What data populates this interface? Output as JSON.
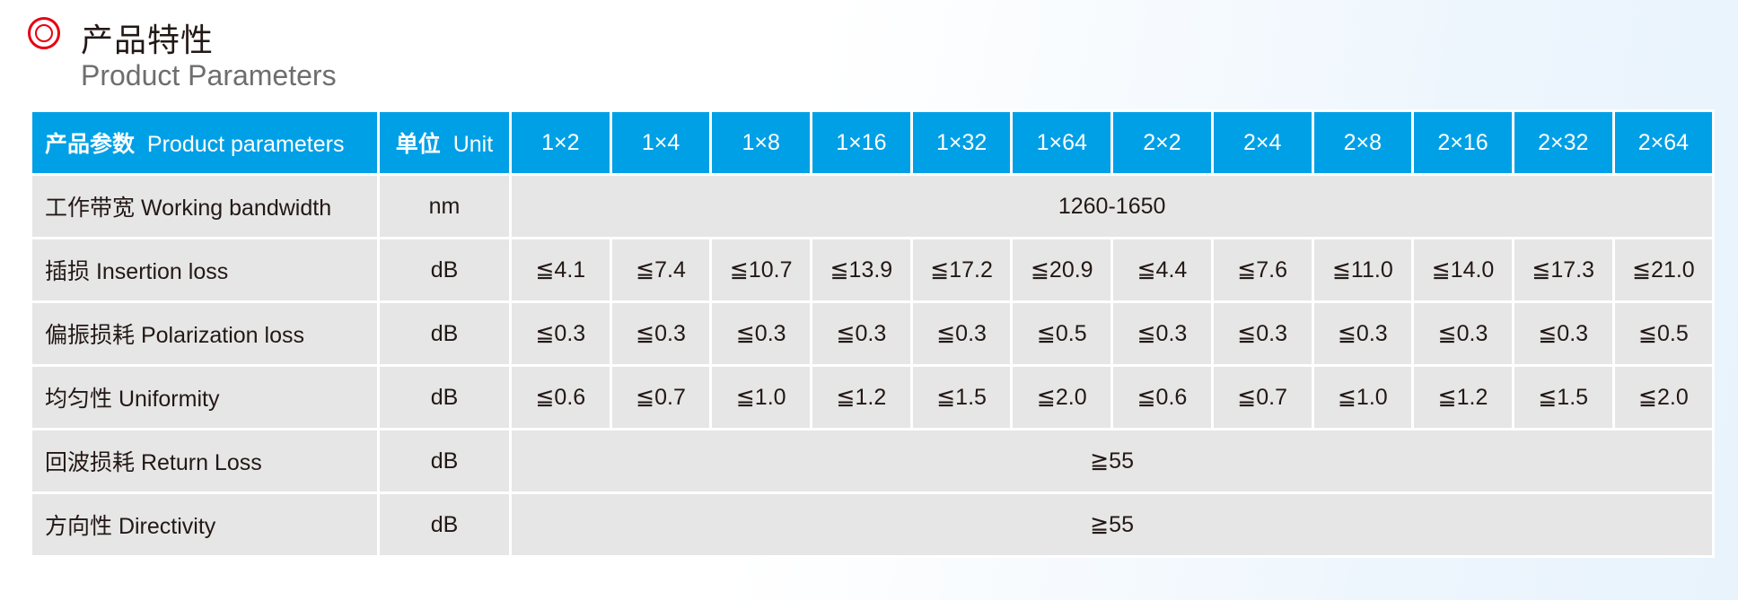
{
  "heading": {
    "title_cn": "产品特性",
    "title_en": "Product Parameters",
    "accent_color": "#e60012",
    "icon": "double-circle-icon"
  },
  "table": {
    "header_color": "#00a0e6",
    "header": {
      "param_cn": "产品参数",
      "param_en": "Product parameters",
      "unit_cn": "单位",
      "unit_en": "Unit",
      "models": [
        "1×2",
        "1×4",
        "1×8",
        "1×16",
        "1×32",
        "1×64",
        "2×2",
        "2×4",
        "2×8",
        "2×16",
        "2×32",
        "2×64"
      ]
    },
    "rows": [
      {
        "label": "工作带宽  Working bandwidth",
        "unit": "nm",
        "merged": "1260-1650"
      },
      {
        "label": "插损  Insertion loss",
        "unit": "dB",
        "values": [
          "≦4.1",
          "≦7.4",
          "≦10.7",
          "≦13.9",
          "≦17.2",
          "≦20.9",
          "≦4.4",
          "≦7.6",
          "≦11.0",
          "≦14.0",
          "≦17.3",
          "≦21.0"
        ]
      },
      {
        "label": "偏振损耗  Polarization loss",
        "unit": "dB",
        "values": [
          "≦0.3",
          "≦0.3",
          "≦0.3",
          "≦0.3",
          "≦0.3",
          "≦0.5",
          "≦0.3",
          "≦0.3",
          "≦0.3",
          "≦0.3",
          "≦0.3",
          "≦0.5"
        ]
      },
      {
        "label": "均匀性  Uniformity",
        "unit": "dB",
        "values": [
          "≦0.6",
          "≦0.7",
          "≦1.0",
          "≦1.2",
          "≦1.5",
          "≦2.0",
          "≦0.6",
          "≦0.7",
          "≦1.0",
          "≦1.2",
          "≦1.5",
          "≦2.0"
        ]
      },
      {
        "label": "回波损耗  Return Loss",
        "unit": "dB",
        "merged": "≧55"
      },
      {
        "label": "方向性 Directivity",
        "unit": "dB",
        "merged": "≧55"
      }
    ]
  }
}
